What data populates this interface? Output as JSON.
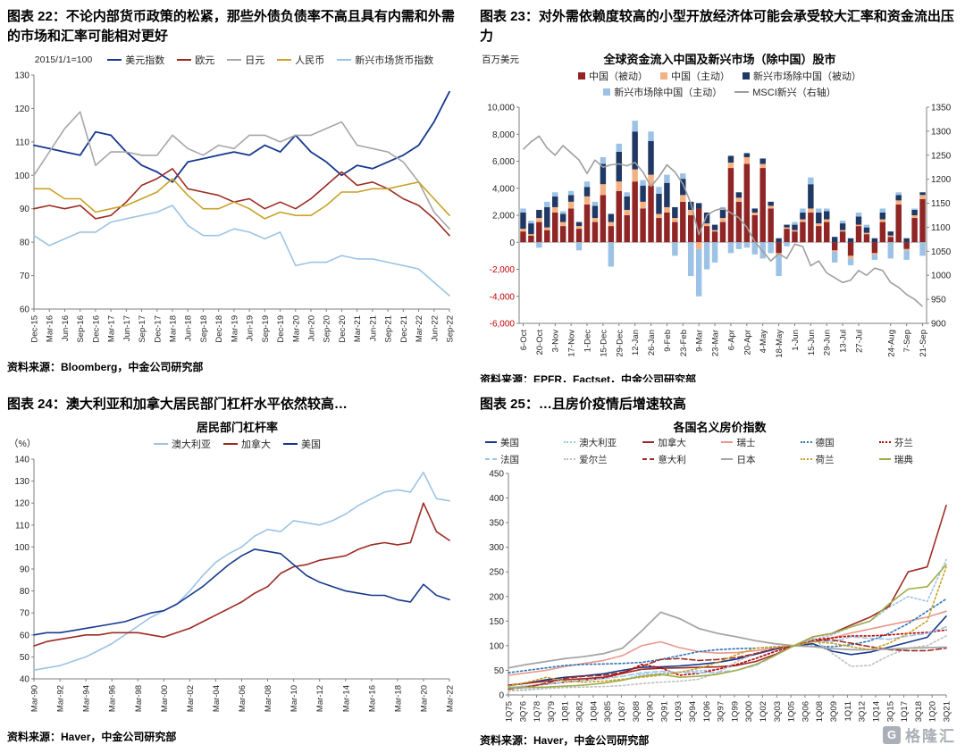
{
  "watermark": {
    "badge": "G",
    "brand": "格隆汇"
  },
  "panels": {
    "fig22": {
      "title": "图表 22：不论内部货币政策的松紧，那些外债负债率不高且具有内需和外需的市场和汇率可能相对更好",
      "source": "资料来源：Bloomberg，中金公司研究部"
    },
    "fig23": {
      "title": "图表 23：对外需依赖度较高的小型开放经济体可能会承受较大汇率和资金流出压力",
      "source": "资料来源：EPFR，Factset，中金公司研究部"
    },
    "fig24": {
      "title": "图表 24：澳大利亚和加拿大居民部门杠杆水平依然较高…",
      "source": "资料来源：Haver，中金公司研究部"
    },
    "fig25": {
      "title": "图表 25：…且房价疫情后增速较高",
      "source": "资料来源：Haver，中金公司研究部"
    }
  },
  "chart_data": [
    {
      "type": "line",
      "unit_label": "2015/1/1=100",
      "ylim": [
        60,
        130
      ],
      "ytick_step": 10,
      "x_tick_labels": [
        "Dec-15",
        "Mar-16",
        "Jun-16",
        "Sep-16",
        "Dec-16",
        "Mar-17",
        "Jun-17",
        "Sep-17",
        "Dec-17",
        "Mar-18",
        "Jun-18",
        "Sep-18",
        "Dec-18",
        "Mar-19",
        "Jun-19",
        "Sep-19",
        "Dec-19",
        "Mar-20",
        "Jun-20",
        "Sep-20",
        "Dec-20",
        "Mar-21",
        "Jun-21",
        "Sep-21",
        "Dec-21",
        "Mar-22",
        "Jun-22",
        "Sep-22"
      ],
      "series": [
        {
          "name": "美元指数",
          "color": "#16388E",
          "dash": "solid",
          "width": 1.8,
          "values": [
            109,
            108,
            107,
            106,
            113,
            112,
            107,
            103,
            101,
            98,
            104,
            105,
            106,
            107,
            106,
            109,
            107,
            112,
            107,
            104,
            100,
            103,
            102,
            104,
            106,
            109,
            116,
            125
          ]
        },
        {
          "name": "欧元",
          "color": "#9C2B23",
          "dash": "solid",
          "values": [
            90,
            91,
            90,
            91,
            87,
            88,
            92,
            97,
            99,
            102,
            96,
            95,
            94,
            92,
            93,
            90,
            92,
            90,
            93,
            97,
            101,
            97,
            98,
            96,
            93,
            91,
            87,
            82
          ]
        },
        {
          "name": "日元",
          "color": "#A6A6A6",
          "dash": "solid",
          "values": [
            100,
            107,
            114,
            119,
            103,
            107,
            107,
            106,
            106,
            112,
            108,
            106,
            109,
            108,
            112,
            112,
            110,
            112,
            112,
            114,
            116,
            109,
            108,
            107,
            104,
            98,
            89,
            84
          ]
        },
        {
          "name": "人民币",
          "color": "#C9A227",
          "dash": "solid",
          "values": [
            96,
            96,
            93,
            93,
            89,
            90,
            91,
            93,
            95,
            99,
            94,
            90,
            90,
            92,
            90,
            87,
            89,
            88,
            88,
            91,
            95,
            95,
            96,
            96,
            97,
            98,
            93,
            88
          ]
        },
        {
          "name": "新兴市场货币指数",
          "color": "#9CC3E5",
          "dash": "solid",
          "values": [
            82,
            79,
            81,
            83,
            83,
            86,
            87,
            88,
            89,
            91,
            85,
            82,
            82,
            84,
            83,
            81,
            83,
            73,
            74,
            74,
            76,
            75,
            75,
            74,
            73,
            72,
            68,
            64
          ]
        }
      ]
    },
    {
      "type": "stacked_bar_line",
      "chart_title": "全球资金流入中国及新兴市场（除中国）股市",
      "unit_label": "百万美元",
      "ylim_left": [
        -6000,
        10000
      ],
      "ytick_step_left": 2000,
      "ylim_right": [
        900,
        1350
      ],
      "ytick_step_right": 50,
      "negative_tick_color": "#C00000",
      "x_tick_labels": [
        "6-Oct",
        "20-Oct",
        "3-Nov",
        "17-Nov",
        "1-Dec",
        "15-Dec",
        "29-Dec",
        "12-Jan",
        "26-Jan",
        "9-Feb",
        "23-Feb",
        "9-Mar",
        "23-Mar",
        "6-Apr",
        "20-Apr",
        "4-May",
        "18-May",
        "1-Jun",
        "15-Jun",
        "29-Jun",
        "13-Jul",
        "27-Jul",
        "24-Aug",
        "7-Sep",
        "21-Sep"
      ],
      "x_tick_positions": [
        0,
        2,
        4,
        6,
        8,
        10,
        12,
        14,
        16,
        18,
        20,
        22,
        24,
        26,
        28,
        30,
        32,
        34,
        36,
        38,
        40,
        42,
        46,
        48,
        50
      ],
      "bar_series": [
        {
          "name": "中国（被动）",
          "color": "#8F2525",
          "values": [
            800,
            500,
            1500,
            900,
            2200,
            1200,
            2500,
            1000,
            2800,
            1500,
            3500,
            1200,
            3800,
            2000,
            4500,
            2500,
            4200,
            1800,
            2200,
            1500,
            3000,
            2000,
            2500,
            1200,
            800,
            1500,
            5500,
            3000,
            5800,
            2000,
            5500,
            2500,
            -800,
            1000,
            800,
            1500,
            2200,
            1200,
            1500,
            -600,
            800,
            -1000,
            1200,
            600,
            -800,
            1500,
            400,
            2800,
            -500,
            1800,
            3200
          ]
        },
        {
          "name": "中国（主动）",
          "color": "#F4B183",
          "values": [
            200,
            100,
            300,
            200,
            400,
            300,
            500,
            200,
            600,
            300,
            800,
            300,
            700,
            400,
            900,
            500,
            800,
            300,
            400,
            300,
            500,
            400,
            -500,
            200,
            100,
            300,
            400,
            300,
            500,
            200,
            300,
            200,
            -200,
            100,
            100,
            200,
            300,
            200,
            200,
            -100,
            100,
            -200,
            100,
            100,
            -100,
            200,
            100,
            300,
            -100,
            200,
            300
          ]
        },
        {
          "name": "新兴市场除中国（被动）",
          "color": "#1F3864",
          "values": [
            1200,
            800,
            600,
            1500,
            800,
            600,
            500,
            300,
            700,
            900,
            1500,
            600,
            2200,
            1000,
            2800,
            1200,
            2500,
            1500,
            1800,
            800,
            1200,
            600,
            400,
            800,
            400,
            600,
            500,
            400,
            300,
            300,
            400,
            300,
            300,
            200,
            400,
            500,
            1800,
            800,
            600,
            400,
            500,
            300,
            600,
            400,
            300,
            500,
            300,
            400,
            300,
            400,
            200
          ]
        },
        {
          "name": "新兴市场除中国（主动）",
          "color": "#9CC3E5",
          "values": [
            300,
            200,
            -400,
            400,
            300,
            200,
            300,
            -600,
            400,
            300,
            500,
            -1800,
            600,
            300,
            800,
            400,
            700,
            500,
            600,
            -1000,
            400,
            -2500,
            -3500,
            -2000,
            -1500,
            200,
            -800,
            -500,
            -400,
            -900,
            -1200,
            -800,
            -1500,
            -300,
            200,
            300,
            500,
            300,
            200,
            -800,
            200,
            -500,
            300,
            200,
            -400,
            300,
            -1200,
            200,
            -700,
            100,
            -1000
          ]
        }
      ],
      "line_series": {
        "name": "MSCI新兴（右轴）",
        "color": "#9E9E9E",
        "values": [
          1262,
          1278,
          1290,
          1265,
          1250,
          1270,
          1255,
          1240,
          1212,
          1240,
          1225,
          1230,
          1232,
          1228,
          1235,
          1215,
          1185,
          1205,
          1230,
          1215,
          1190,
          1150,
          1085,
          1125,
          1135,
          1140,
          1130,
          1120,
          1100,
          1070,
          1050,
          1030,
          1045,
          1035,
          1065,
          1060,
          1020,
          1030,
          1005,
          995,
          985,
          990,
          1010,
          1000,
          1015,
          1010,
          985,
          975,
          960,
          950,
          935
        ]
      }
    },
    {
      "type": "line",
      "chart_title": "居民部门杠杆率",
      "unit_label": "（%）",
      "ylim": [
        40,
        140
      ],
      "ytick_step": 10,
      "x_tick_labels": [
        "Mar-90",
        "Mar-92",
        "Mar-94",
        "Mar-96",
        "Mar-98",
        "Mar-00",
        "Mar-02",
        "Mar-04",
        "Mar-06",
        "Mar-08",
        "Mar-10",
        "Mar-12",
        "Mar-14",
        "Mar-16",
        "Mar-18",
        "Mar-20",
        "Mar-22"
      ],
      "series": [
        {
          "name": "澳大利亚",
          "color": "#9CC3E5",
          "dash": "solid",
          "values": [
            44,
            45,
            46,
            48,
            50,
            53,
            56,
            60,
            64,
            68,
            71,
            74,
            80,
            87,
            93,
            97,
            100,
            105,
            108,
            107,
            112,
            111,
            110,
            112,
            115,
            119,
            122,
            125,
            126,
            125,
            134,
            122,
            121
          ]
        },
        {
          "name": "加拿大",
          "color": "#9C2B23",
          "dash": "solid",
          "values": [
            55,
            57,
            58,
            59,
            60,
            60,
            61,
            61,
            61,
            60,
            59,
            61,
            63,
            66,
            69,
            72,
            75,
            79,
            82,
            88,
            91,
            92,
            94,
            95,
            96,
            99,
            101,
            102,
            101,
            102,
            120,
            107,
            103
          ]
        },
        {
          "name": "美国",
          "color": "#16388E",
          "dash": "solid",
          "values": [
            60,
            61,
            61,
            62,
            63,
            64,
            65,
            66,
            68,
            70,
            71,
            74,
            78,
            82,
            87,
            92,
            96,
            99,
            98,
            97,
            92,
            87,
            84,
            82,
            80,
            79,
            78,
            78,
            76,
            75,
            83,
            78,
            76
          ]
        }
      ]
    },
    {
      "type": "line",
      "chart_title": "各国名义房价指数",
      "ylim": [
        0,
        450
      ],
      "ytick_step": 50,
      "x_tick_labels": [
        "1Q75",
        "3Q76",
        "1Q78",
        "3Q79",
        "1Q81",
        "3Q82",
        "1Q84",
        "3Q85",
        "1Q87",
        "3Q88",
        "1Q90",
        "3Q91",
        "1Q93",
        "3Q94",
        "1Q96",
        "3Q97",
        "1Q99",
        "3Q00",
        "1Q02",
        "3Q03",
        "1Q05",
        "3Q06",
        "1Q08",
        "3Q09",
        "1Q11",
        "3Q12",
        "1Q14",
        "3Q15",
        "1Q17",
        "3Q18",
        "1Q20",
        "3Q21"
      ],
      "series": [
        {
          "name": "美国",
          "color": "#16388E",
          "dash": "solid",
          "values": [
            19,
            24,
            31,
            36,
            39,
            43,
            50,
            56,
            57,
            59,
            62,
            66,
            73,
            83,
            93,
            100,
            104,
            89,
            82,
            87,
            97,
            107,
            117,
            160
          ]
        },
        {
          "name": "澳大利亚",
          "color": "#9CC3E5",
          "dash": "dot",
          "values": [
            9,
            11,
            14,
            17,
            20,
            24,
            30,
            42,
            44,
            46,
            49,
            52,
            60,
            75,
            90,
            100,
            112,
            122,
            138,
            150,
            178,
            200,
            190,
            275
          ]
        },
        {
          "name": "加拿大",
          "color": "#9C2B23",
          "dash": "solid",
          "values": [
            20,
            24,
            28,
            31,
            33,
            36,
            44,
            52,
            54,
            55,
            56,
            57,
            60,
            68,
            82,
            100,
            118,
            125,
            142,
            158,
            180,
            250,
            260,
            385
          ]
        },
        {
          "name": "瑞士",
          "color": "#E8978E",
          "dash": "solid",
          "values": [
            40,
            45,
            50,
            58,
            64,
            70,
            80,
            100,
            108,
            96,
            88,
            85,
            86,
            90,
            95,
            100,
            108,
            116,
            126,
            134,
            142,
            150,
            158,
            170
          ]
        },
        {
          "name": "德国",
          "color": "#2E75B6",
          "dash": "dot",
          "values": [
            45,
            50,
            55,
            60,
            62,
            63,
            64,
            66,
            72,
            80,
            88,
            92,
            94,
            95,
            97,
            100,
            99,
            98,
            102,
            110,
            125,
            145,
            170,
            195
          ]
        },
        {
          "name": "芬兰",
          "color": "#C00000",
          "dash": "dot",
          "values": [
            15,
            18,
            22,
            26,
            30,
            34,
            44,
            62,
            55,
            40,
            44,
            52,
            62,
            74,
            88,
            100,
            112,
            116,
            120,
            120,
            122,
            125,
            127,
            132
          ]
        },
        {
          "name": "法国",
          "color": "#9CC3E5",
          "dash": "dash",
          "values": [
            15,
            18,
            22,
            26,
            30,
            33,
            38,
            45,
            48,
            46,
            45,
            46,
            50,
            60,
            80,
            100,
            112,
            108,
            118,
            115,
            113,
            120,
            125,
            138
          ]
        },
        {
          "name": "爱尔兰",
          "color": "#BFBFBF",
          "dash": "dot",
          "values": [
            8,
            10,
            13,
            15,
            16,
            17,
            19,
            23,
            26,
            28,
            32,
            45,
            68,
            85,
            95,
            100,
            115,
            85,
            58,
            60,
            80,
            95,
            100,
            120
          ]
        },
        {
          "name": "意大利",
          "color": "#9C2B23",
          "dash": "dash",
          "values": [
            12,
            16,
            24,
            34,
            38,
            40,
            46,
            58,
            72,
            74,
            70,
            72,
            76,
            84,
            94,
            100,
            110,
            112,
            105,
            98,
            92,
            90,
            90,
            95
          ]
        },
        {
          "name": "日本",
          "color": "#A6A6A6",
          "dash": "solid",
          "width": 1.8,
          "values": [
            55,
            62,
            68,
            74,
            78,
            84,
            95,
            130,
            168,
            155,
            135,
            125,
            118,
            110,
            104,
            100,
            98,
            94,
            92,
            92,
            93,
            95,
            96,
            97
          ]
        },
        {
          "name": "荷兰",
          "color": "#C9A227",
          "dash": "dot",
          "values": [
            18,
            26,
            36,
            28,
            26,
            28,
            32,
            36,
            40,
            46,
            54,
            66,
            82,
            95,
            98,
            100,
            108,
            105,
            98,
            92,
            105,
            125,
            150,
            260
          ]
        },
        {
          "name": "瑞典",
          "color": "#A0AC48",
          "dash": "solid",
          "values": [
            14,
            15,
            16,
            18,
            20,
            24,
            30,
            38,
            42,
            36,
            38,
            42,
            50,
            62,
            80,
            100,
            118,
            125,
            138,
            150,
            185,
            215,
            220,
            265
          ]
        }
      ]
    }
  ]
}
